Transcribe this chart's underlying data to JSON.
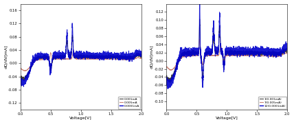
{
  "fig_width": 4.28,
  "fig_height": 1.81,
  "dpi": 100,
  "background": "#ffffff",
  "panels": [
    {
      "xlabel": "Voltage[V]",
      "ylabel": "dQ/dV[mA]",
      "xlim": [
        0.0,
        2.0
      ],
      "ylim": [
        -0.14,
        0.18
      ],
      "yticks": [
        -0.12,
        -0.08,
        -0.04,
        0.0,
        0.04,
        0.08,
        0.12,
        0.16
      ],
      "xticks": [
        0.0,
        0.5,
        1.0,
        1.5,
        2.0
      ],
      "legend": [
        "0.001mA",
        "0.005mA",
        "0.0001mA"
      ],
      "legend_colors": [
        "#2b2b2b",
        "#c87a6a",
        "#0000cc"
      ],
      "legend_lw": [
        0.7,
        0.7,
        1.0
      ]
    },
    {
      "xlabel": "Voltage[V]",
      "ylabel": "dQ/dV[mA]",
      "xlim": [
        0.0,
        2.0
      ],
      "ylim": [
        -0.12,
        0.14
      ],
      "yticks": [
        -0.1,
        -0.08,
        -0.06,
        -0.04,
        -0.02,
        0.0,
        0.02,
        0.04,
        0.06,
        0.08,
        0.1,
        0.12
      ],
      "xticks": [
        0.0,
        0.5,
        1.0,
        1.5,
        2.0
      ],
      "legend": [
        "1(0.001mA)",
        "7(0.005mA)",
        "12(0.0001mA)"
      ],
      "legend_colors": [
        "#2b2b2b",
        "#c87a6a",
        "#0000cc"
      ],
      "legend_lw": [
        0.7,
        0.7,
        1.0
      ]
    }
  ]
}
